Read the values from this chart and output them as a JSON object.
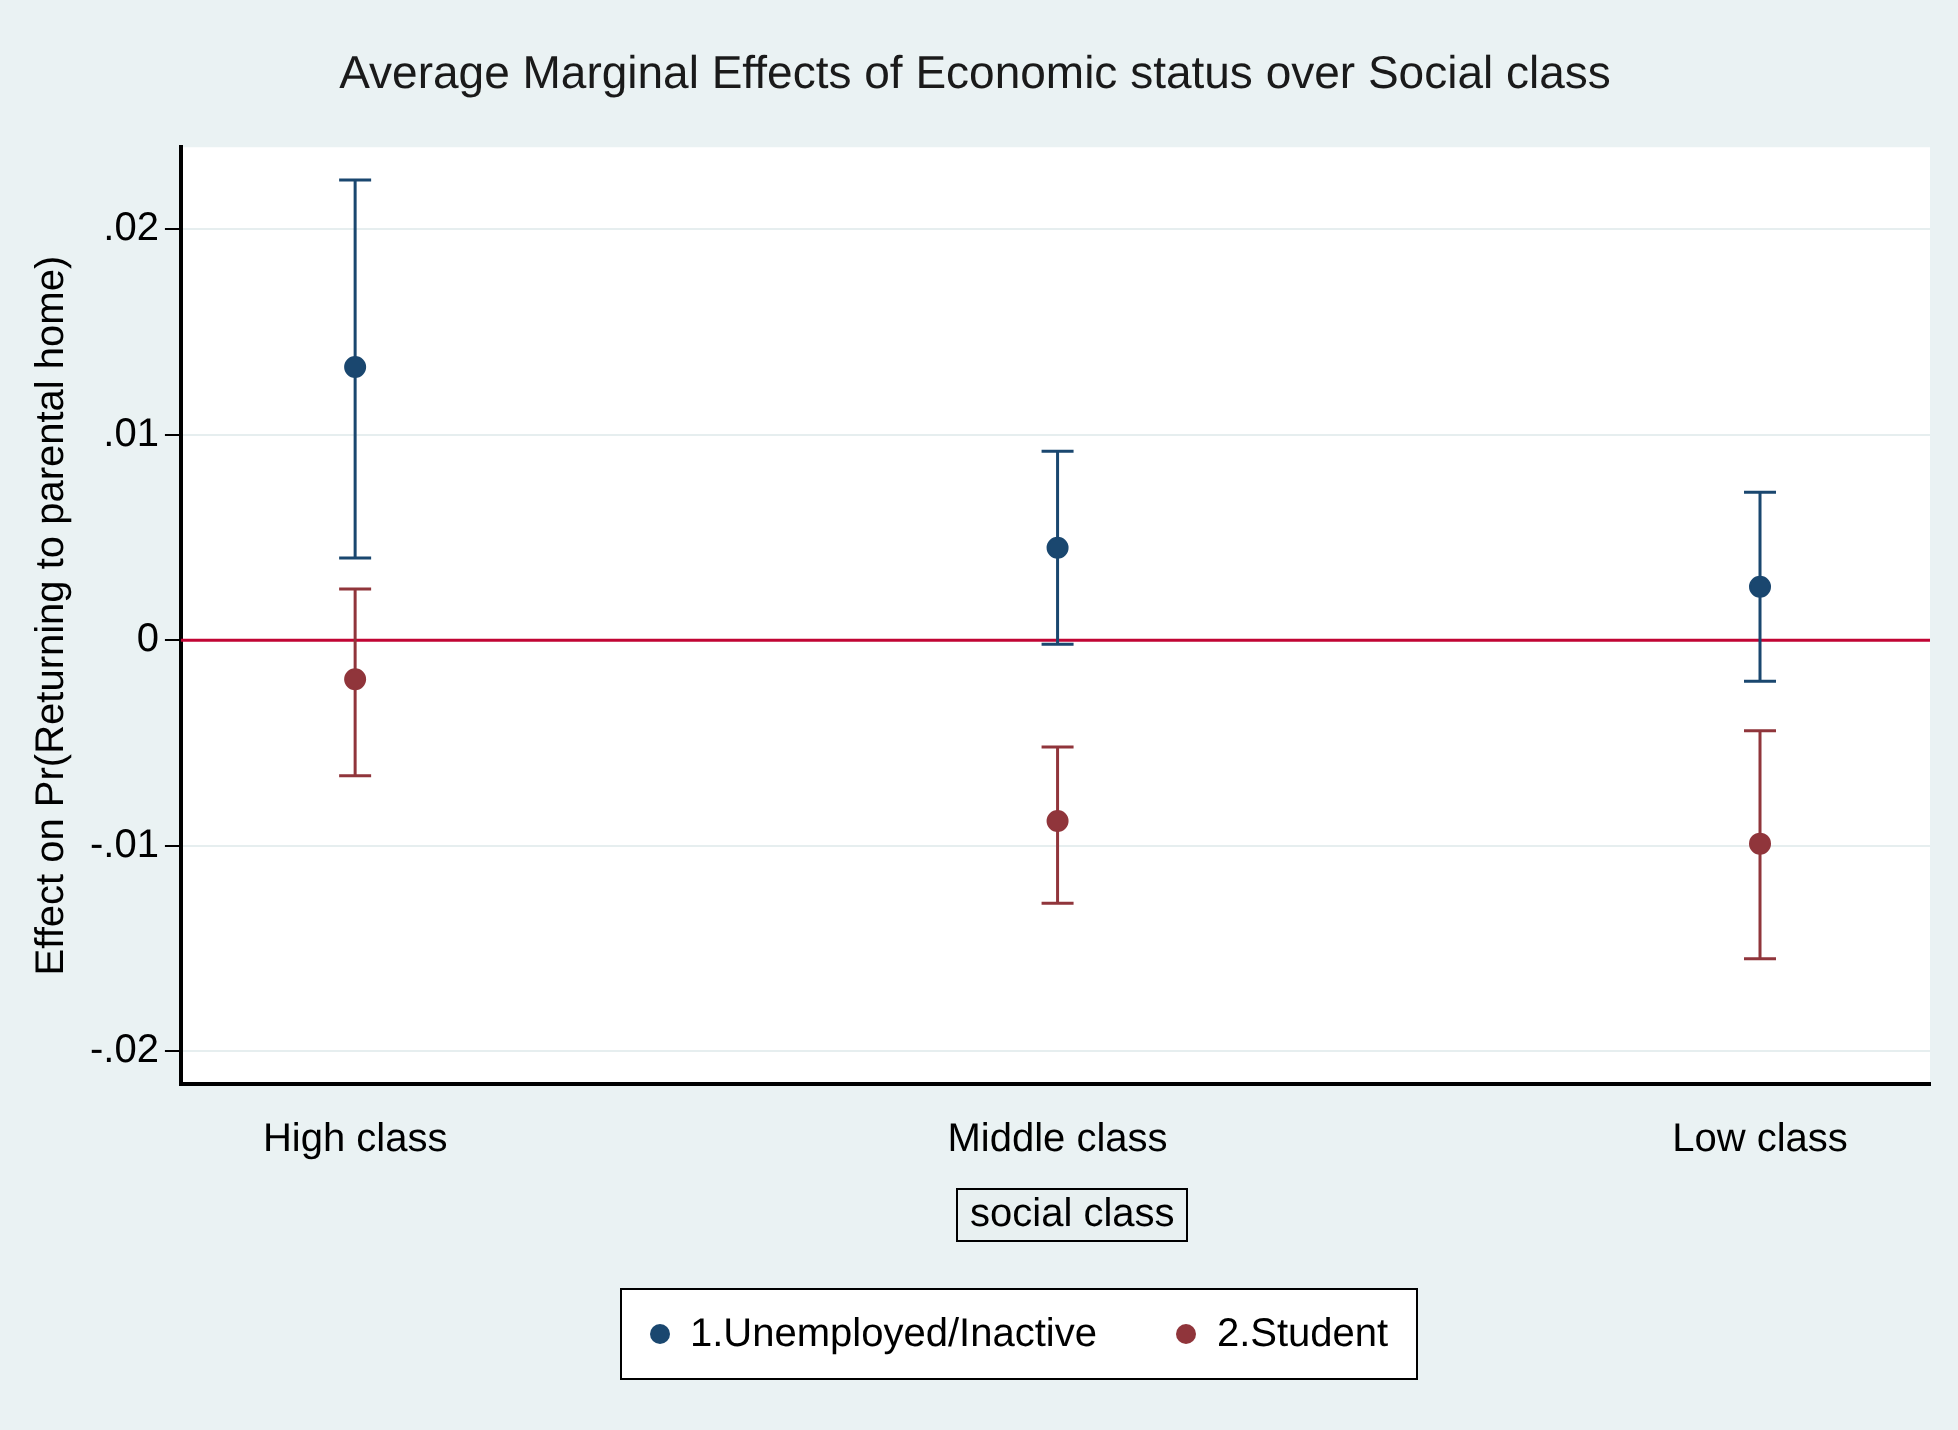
{
  "chart_data": {
    "type": "scatter",
    "title": "Average Marginal Effects of Economic status over Social class",
    "xlabel": "social class",
    "ylabel": "Effect on Pr(Returning to parental home)",
    "categories": [
      "High class",
      "Middle class",
      "Low class"
    ],
    "series": [
      {
        "name": "1.Unemployed/Inactive",
        "color": "#1a476f",
        "values": [
          0.0133,
          0.0045,
          0.0026
        ],
        "errors": [
          [
            0.004,
            0.0224
          ],
          [
            -0.0002,
            0.0092
          ],
          [
            -0.002,
            0.0072
          ]
        ]
      },
      {
        "name": "2.Student",
        "color": "#90353b",
        "values": [
          -0.0019,
          -0.0088,
          -0.0099
        ],
        "errors": [
          [
            -0.0066,
            0.0025
          ],
          [
            -0.0128,
            -0.0052
          ],
          [
            -0.0155,
            -0.0044
          ]
        ]
      }
    ],
    "ylim": [
      -0.0216,
      0.024
    ],
    "yticks": [
      {
        "value": 0.02,
        "label": ".02"
      },
      {
        "value": 0.01,
        "label": ".01"
      },
      0,
      {
        "value": -0.01,
        "label": "-.01"
      },
      {
        "value": -0.02,
        "label": "-.02"
      }
    ],
    "ref_lines": [
      {
        "axis": "y",
        "value": 0,
        "color": "#c10534"
      }
    ],
    "grid": "y",
    "legend": "bottom",
    "marker": "circle"
  }
}
